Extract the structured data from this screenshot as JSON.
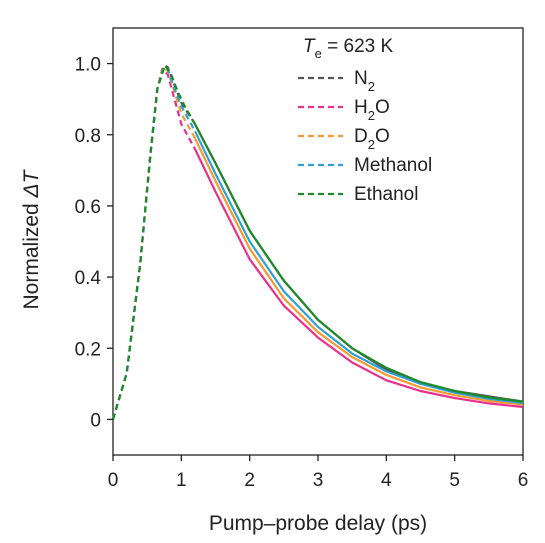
{
  "chart_data": {
    "type": "line",
    "title": "",
    "xlabel": "Pump–probe delay (ps)",
    "ylabel_main": "Normalized ",
    "ylabel_symbol": "ΔT",
    "xlim": [
      0,
      6
    ],
    "ylim": [
      -0.1,
      1.1
    ],
    "x_ticks": [
      0,
      1,
      2,
      3,
      4,
      5,
      6
    ],
    "y_ticks": [
      0,
      0.2,
      0.4,
      0.6,
      0.8,
      1.0
    ],
    "y_tick_labels": [
      "0",
      "0.2",
      "0.4",
      "0.6",
      "0.8",
      "1.0"
    ],
    "grid": false,
    "legend_position": "top-right",
    "legend_title": {
      "symbol": "T",
      "subscript": "e",
      "rest": " = 623 K"
    },
    "series": [
      {
        "name": "N2",
        "label_main": "N",
        "label_sub": "2",
        "label_tail": "",
        "color": "#555555",
        "x": [
          0,
          0.2,
          0.4,
          0.55,
          0.65,
          0.75,
          0.8,
          0.9,
          1.0,
          1.2,
          1.5,
          2.0,
          2.5,
          3.0,
          3.5,
          4.0,
          4.5,
          5.0,
          5.5,
          6.0
        ],
        "y": [
          0,
          0.13,
          0.44,
          0.75,
          0.93,
          0.995,
          0.99,
          0.94,
          0.89,
          0.83,
          0.72,
          0.53,
          0.39,
          0.28,
          0.2,
          0.14,
          0.1,
          0.08,
          0.065,
          0.05
        ]
      },
      {
        "name": "H2O",
        "label_main": "H",
        "label_sub": "2",
        "label_tail": "O",
        "color": "#e8308c",
        "x": [
          0,
          0.2,
          0.4,
          0.55,
          0.65,
          0.72,
          0.8,
          0.9,
          1.0,
          1.2,
          1.5,
          2.0,
          2.5,
          3.0,
          3.5,
          4.0,
          4.5,
          5.0,
          5.5,
          6.0
        ],
        "y": [
          0,
          0.13,
          0.44,
          0.75,
          0.93,
          0.985,
          0.97,
          0.9,
          0.83,
          0.76,
          0.64,
          0.45,
          0.32,
          0.23,
          0.16,
          0.11,
          0.08,
          0.06,
          0.045,
          0.035
        ]
      },
      {
        "name": "D2O",
        "label_main": "D",
        "label_sub": "2",
        "label_tail": "O",
        "color": "#f59a2e",
        "x": [
          0,
          0.2,
          0.4,
          0.55,
          0.65,
          0.73,
          0.8,
          0.9,
          1.0,
          1.2,
          1.5,
          2.0,
          2.5,
          3.0,
          3.5,
          4.0,
          4.5,
          5.0,
          5.5,
          6.0
        ],
        "y": [
          0,
          0.13,
          0.44,
          0.75,
          0.93,
          0.99,
          0.98,
          0.92,
          0.86,
          0.79,
          0.67,
          0.48,
          0.34,
          0.245,
          0.175,
          0.125,
          0.09,
          0.068,
          0.052,
          0.042
        ]
      },
      {
        "name": "Methanol",
        "label_main": "Methanol",
        "label_sub": "",
        "label_tail": "",
        "color": "#2f9fd8",
        "x": [
          0,
          0.2,
          0.4,
          0.55,
          0.65,
          0.74,
          0.8,
          0.9,
          1.0,
          1.2,
          1.5,
          2.0,
          2.5,
          3.0,
          3.5,
          4.0,
          4.5,
          5.0,
          5.5,
          6.0
        ],
        "y": [
          0,
          0.13,
          0.44,
          0.75,
          0.93,
          0.99,
          0.985,
          0.93,
          0.88,
          0.81,
          0.69,
          0.5,
          0.36,
          0.26,
          0.185,
          0.135,
          0.1,
          0.075,
          0.058,
          0.046
        ]
      },
      {
        "name": "Ethanol",
        "label_main": "Ethanol",
        "label_sub": "",
        "label_tail": "",
        "color": "#1f8a2a",
        "x": [
          0,
          0.2,
          0.4,
          0.55,
          0.65,
          0.76,
          0.85,
          0.95,
          1.05,
          1.2,
          1.5,
          2.0,
          2.5,
          3.0,
          3.5,
          4.0,
          4.5,
          5.0,
          5.5,
          6.0
        ],
        "y": [
          0,
          0.13,
          0.44,
          0.75,
          0.93,
          0.995,
          0.97,
          0.92,
          0.88,
          0.83,
          0.72,
          0.53,
          0.39,
          0.28,
          0.2,
          0.145,
          0.105,
          0.08,
          0.062,
          0.05
        ]
      }
    ]
  }
}
